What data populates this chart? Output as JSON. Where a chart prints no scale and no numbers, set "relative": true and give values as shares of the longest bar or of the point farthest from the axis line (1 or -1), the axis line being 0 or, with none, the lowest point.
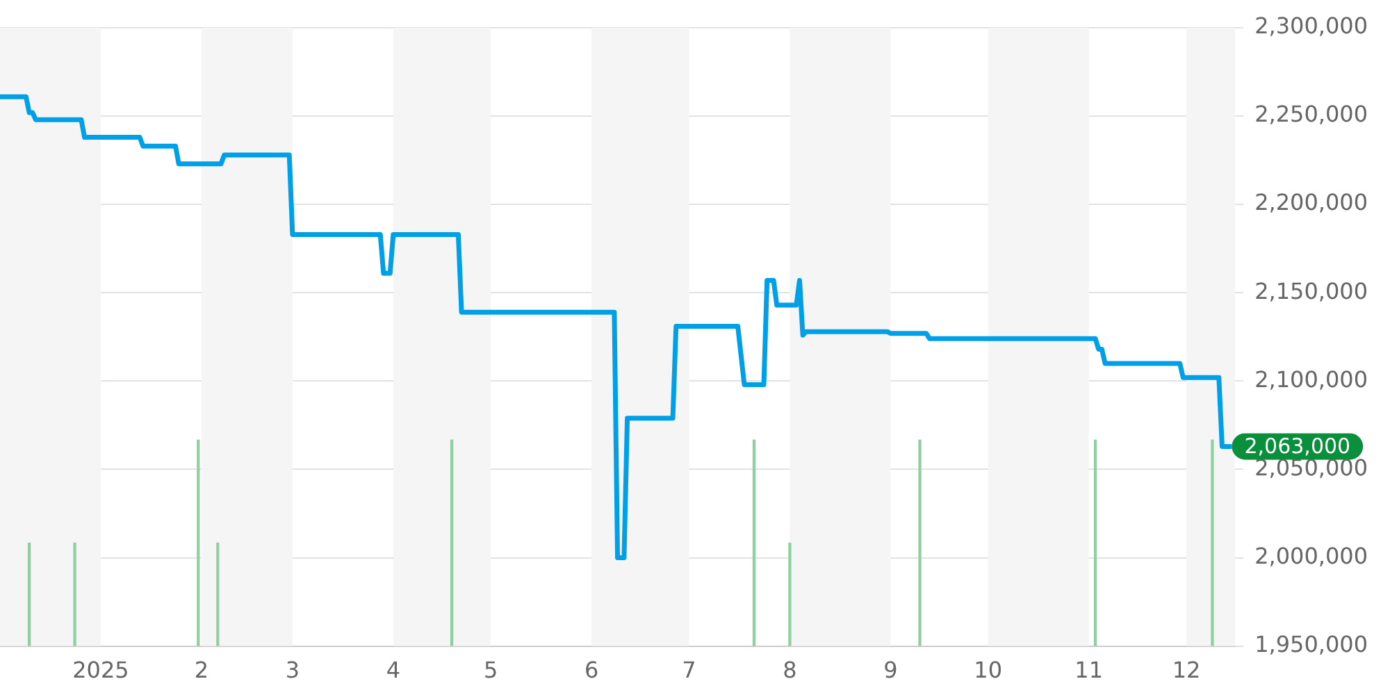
{
  "chart_data": [
    {
      "type": "line",
      "xlim": [
        "2024-12-01",
        "2025-12-16"
      ],
      "xticks": [
        {
          "value": "2025-01-01",
          "label": "2025"
        },
        {
          "value": "2025-02-01",
          "label": "2"
        },
        {
          "value": "2025-03-01",
          "label": "3"
        },
        {
          "value": "2025-04-01",
          "label": "4"
        },
        {
          "value": "2025-05-01",
          "label": "5"
        },
        {
          "value": "2025-06-01",
          "label": "6"
        },
        {
          "value": "2025-07-01",
          "label": "7"
        },
        {
          "value": "2025-08-01",
          "label": "8"
        },
        {
          "value": "2025-09-01",
          "label": "9"
        },
        {
          "value": "2025-10-01",
          "label": "10"
        },
        {
          "value": "2025-11-01",
          "label": "11"
        },
        {
          "value": "2025-12-01",
          "label": "12"
        }
      ],
      "ylim": [
        1950000,
        2300000
      ],
      "yticks": [
        {
          "value": 1950000,
          "label": "1,950,000"
        },
        {
          "value": 2000000,
          "label": "2,000,000"
        },
        {
          "value": 2050000,
          "label": "2,050,000"
        },
        {
          "value": 2100000,
          "label": "2,100,000"
        },
        {
          "value": 2150000,
          "label": "2,150,000"
        },
        {
          "value": 2200000,
          "label": "2,200,000"
        },
        {
          "value": 2250000,
          "label": "2,250,000"
        },
        {
          "value": 2300000,
          "label": "2,300,000"
        }
      ],
      "grid": "y",
      "legend": false,
      "marker": "none",
      "bands": [
        {
          "axis": "x",
          "from": "2024-12-01",
          "to": "2025-01-01",
          "color": "#f5f5f5"
        },
        {
          "axis": "x",
          "from": "2025-02-01",
          "to": "2025-03-01",
          "color": "#f5f5f5"
        },
        {
          "axis": "x",
          "from": "2025-04-01",
          "to": "2025-05-01",
          "color": "#f5f5f5"
        },
        {
          "axis": "x",
          "from": "2025-06-01",
          "to": "2025-07-01",
          "color": "#f5f5f5"
        },
        {
          "axis": "x",
          "from": "2025-08-01",
          "to": "2025-09-01",
          "color": "#f5f5f5"
        },
        {
          "axis": "x",
          "from": "2025-10-01",
          "to": "2025-11-01",
          "color": "#f5f5f5"
        },
        {
          "axis": "x",
          "from": "2025-12-01",
          "to": "2025-12-16",
          "color": "#f5f5f5"
        }
      ],
      "annotations": [
        {
          "text": "2,063,000",
          "x": "2025-12-15",
          "y": 2063000
        }
      ],
      "series": [
        {
          "color": "#00a0e9",
          "x": [
            "2024-12-01",
            "2024-12-09",
            "2024-12-10",
            "2024-12-11",
            "2024-12-12",
            "2024-12-26",
            "2024-12-27",
            "2025-01-13",
            "2025-01-14",
            "2025-01-24",
            "2025-01-25",
            "2025-02-07",
            "2025-02-08",
            "2025-02-28",
            "2025-03-01",
            "2025-03-28",
            "2025-03-29",
            "2025-03-31",
            "2025-04-01",
            "2025-04-21",
            "2025-04-22",
            "2025-06-08",
            "2025-06-09",
            "2025-06-11",
            "2025-06-12",
            "2025-06-26",
            "2025-06-27",
            "2025-07-16",
            "2025-07-18",
            "2025-07-24",
            "2025-07-25",
            "2025-07-27",
            "2025-07-28",
            "2025-08-03",
            "2025-08-04",
            "2025-08-05",
            "2025-08-06",
            "2025-08-31",
            "2025-09-01",
            "2025-09-12",
            "2025-09-13",
            "2025-11-03",
            "2025-11-04",
            "2025-11-05",
            "2025-11-06",
            "2025-11-29",
            "2025-11-30",
            "2025-12-11",
            "2025-12-12",
            "2025-12-15"
          ],
          "values": [
            2261000,
            2261000,
            2252000,
            2252000,
            2248000,
            2248000,
            2238000,
            2238000,
            2233000,
            2233000,
            2223000,
            2223000,
            2228000,
            2228000,
            2183000,
            2183000,
            2161000,
            2161000,
            2183000,
            2183000,
            2139000,
            2139000,
            2000000,
            2000000,
            2079000,
            2079000,
            2131000,
            2131000,
            2098000,
            2098000,
            2157000,
            2157000,
            2143000,
            2143000,
            2157000,
            2126000,
            2128000,
            2128000,
            2127000,
            2127000,
            2124000,
            2124000,
            2118000,
            2118000,
            2110000,
            2110000,
            2102000,
            2102000,
            2063000,
            2063000
          ]
        }
      ]
    },
    {
      "type": "bar",
      "relative": true,
      "xlim": [
        "2024-12-01",
        "2025-12-16"
      ],
      "tick_labels": false,
      "series": [
        {
          "color": "#8fd19e",
          "x": [
            "2024-12-10",
            "2024-12-24",
            "2025-01-31",
            "2025-02-06",
            "2025-04-19",
            "2025-07-21",
            "2025-08-01",
            "2025-09-10",
            "2025-11-03",
            "2025-12-09"
          ],
          "values": [
            0.5,
            0.5,
            1,
            0.5,
            1,
            1,
            0.5,
            1,
            1,
            1
          ]
        }
      ]
    }
  ]
}
